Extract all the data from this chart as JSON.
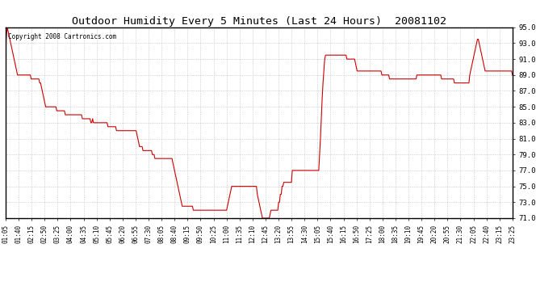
{
  "title": "Outdoor Humidity Every 5 Minutes (Last 24 Hours)  20081102",
  "copyright": "Copyright 2008 Cartronics.com",
  "line_color": "#cc0000",
  "bg_color": "#ffffff",
  "grid_color": "#aaaaaa",
  "ylim": [
    71.0,
    95.0
  ],
  "yticks": [
    71.0,
    73.0,
    75.0,
    77.0,
    79.0,
    81.0,
    83.0,
    85.0,
    87.0,
    89.0,
    91.0,
    93.0,
    95.0
  ],
  "xtick_labels": [
    "01:05",
    "01:40",
    "02:15",
    "02:50",
    "03:25",
    "04:00",
    "04:35",
    "05:10",
    "05:45",
    "06:20",
    "06:55",
    "07:30",
    "08:05",
    "08:40",
    "09:15",
    "09:50",
    "10:25",
    "11:00",
    "11:35",
    "12:10",
    "12:45",
    "13:20",
    "13:55",
    "14:30",
    "15:05",
    "15:40",
    "16:15",
    "16:50",
    "17:25",
    "18:00",
    "18:35",
    "19:10",
    "19:45",
    "20:20",
    "20:55",
    "21:30",
    "22:05",
    "22:40",
    "23:15",
    "23:25"
  ],
  "humidity_values": [
    92,
    94,
    95,
    94.5,
    94,
    93.5,
    93,
    92.5,
    92,
    91.5,
    91,
    90.5,
    90,
    89.5,
    89,
    89,
    89,
    89,
    89,
    89,
    89,
    89,
    89,
    89,
    89,
    89,
    89,
    89,
    89,
    89,
    88.5,
    88.5,
    88.5,
    88.5,
    88.5,
    88.5,
    88.5,
    88.5,
    88.5,
    88.5,
    88,
    88,
    87.5,
    87,
    86.5,
    86,
    85.5,
    85,
    85,
    85,
    85,
    85,
    85,
    85,
    85,
    85,
    85,
    85,
    85,
    85,
    84.5,
    84.5,
    84.5,
    84.5,
    84.5,
    84.5,
    84.5,
    84.5,
    84.5,
    84.5,
    84,
    84,
    84,
    84,
    84,
    84,
    84,
    84,
    84,
    84,
    84,
    84,
    84,
    84,
    84,
    84,
    84,
    84,
    84,
    84,
    83.5,
    83.5,
    83.5,
    83.5,
    83.5,
    83.5,
    83.5,
    83.5,
    83.5,
    83.5,
    83,
    83,
    83.5,
    83,
    83,
    83,
    83,
    83,
    83,
    83,
    83,
    83,
    83,
    83,
    83,
    83,
    83,
    83,
    83,
    83,
    82.5,
    82.5,
    82.5,
    82.5,
    82.5,
    82.5,
    82.5,
    82.5,
    82.5,
    82.5,
    82,
    82,
    82,
    82,
    82,
    82,
    82,
    82,
    82,
    82,
    82,
    82,
    82,
    82,
    82,
    82,
    82,
    82,
    82,
    82,
    82,
    82,
    82,
    82,
    81.5,
    81,
    80.5,
    80,
    80,
    80,
    80,
    79.5,
    79.5,
    79.5,
    79.5,
    79.5,
    79.5,
    79.5,
    79.5,
    79.5,
    79.5,
    79.5,
    79,
    79,
    79,
    78.5,
    78.5,
    78.5,
    78.5,
    78.5,
    78.5,
    78.5,
    78.5,
    78.5,
    78.5,
    78.5,
    78.5,
    78.5,
    78.5,
    78.5,
    78.5,
    78.5,
    78.5,
    78.5,
    78.5,
    78.5,
    78,
    77.5,
    77,
    76.5,
    76,
    75.5,
    75,
    74.5,
    74,
    73.5,
    73,
    72.5,
    72.5,
    72.5,
    72.5,
    72.5,
    72.5,
    72.5,
    72.5,
    72.5,
    72.5,
    72.5,
    72.5,
    72.5,
    72,
    72,
    72,
    72,
    72,
    72,
    72,
    72,
    72,
    72,
    72,
    72,
    72,
    72,
    72,
    72,
    72,
    72,
    72,
    72,
    72,
    72,
    72,
    72,
    72,
    72,
    72,
    72,
    72,
    72,
    72,
    72,
    72,
    72,
    72,
    72,
    72,
    72,
    72,
    72,
    72.5,
    73,
    73.5,
    74,
    74.5,
    75,
    75,
    75,
    75,
    75,
    75,
    75,
    75,
    75,
    75,
    75,
    75,
    75,
    75,
    75,
    75,
    75,
    75,
    75,
    75,
    75,
    75,
    75,
    75,
    75,
    75,
    75,
    75,
    75,
    75,
    74,
    73.5,
    73,
    72.5,
    72,
    71.5,
    71,
    71,
    71,
    71,
    71,
    71,
    71,
    71,
    71,
    71.5,
    72,
    72,
    72,
    72,
    72,
    72,
    72,
    72,
    72,
    73,
    73,
    74,
    74,
    75,
    75,
    75.5,
    75.5,
    75.5,
    75.5,
    75.5,
    75.5,
    75.5,
    75.5,
    75.5,
    75.5,
    77,
    77,
    77,
    77,
    77,
    77,
    77,
    77,
    77,
    77,
    77,
    77,
    77,
    77,
    77,
    77,
    77,
    77,
    77,
    77,
    77,
    77,
    77,
    77,
    77,
    77,
    77,
    77,
    77,
    77,
    77,
    77,
    79,
    81,
    83.5,
    86,
    88,
    89.5,
    91,
    91.5,
    91.5,
    91.5,
    91.5,
    91.5,
    91.5,
    91.5,
    91.5,
    91.5,
    91.5,
    91.5,
    91.5,
    91.5,
    91.5,
    91.5,
    91.5,
    91.5,
    91.5,
    91.5,
    91.5,
    91.5,
    91.5,
    91.5,
    91.5,
    91.5,
    91,
    91,
    91,
    91,
    91,
    91,
    91,
    91,
    91,
    91,
    90.5,
    90,
    89.5,
    89.5,
    89.5,
    89.5,
    89.5,
    89.5,
    89.5,
    89.5,
    89.5,
    89.5,
    89.5,
    89.5,
    89.5,
    89.5,
    89.5,
    89.5,
    89.5,
    89.5,
    89.5,
    89.5,
    89.5,
    89.5,
    89.5,
    89.5,
    89.5,
    89.5,
    89.5,
    89.5,
    89.5,
    89,
    89,
    89,
    89,
    89,
    89,
    89,
    89,
    89,
    88.5,
    88.5,
    88.5,
    88.5,
    88.5,
    88.5,
    88.5,
    88.5,
    88.5,
    88.5,
    88.5,
    88.5,
    88.5,
    88.5,
    88.5,
    88.5,
    88.5,
    88.5,
    88.5,
    88.5,
    88.5,
    88.5,
    88.5,
    88.5,
    88.5,
    88.5,
    88.5,
    88.5,
    88.5,
    88.5,
    88.5,
    88.5,
    89,
    89,
    89,
    89,
    89,
    89,
    89,
    89,
    89,
    89,
    89,
    89,
    89,
    89,
    89,
    89,
    89,
    89,
    89,
    89,
    89,
    89,
    89,
    89,
    89,
    89,
    89,
    89,
    89,
    88.5,
    88.5,
    88.5,
    88.5,
    88.5,
    88.5,
    88.5,
    88.5,
    88.5,
    88.5,
    88.5,
    88.5,
    88.5,
    88.5,
    88.5,
    88,
    88,
    88,
    88,
    88,
    88,
    88,
    88,
    88,
    88,
    88,
    88,
    88,
    88,
    88,
    88,
    88,
    88,
    89,
    89.5,
    90,
    90.5,
    91,
    91.5,
    92,
    92.5,
    93,
    93.5,
    93.5,
    93,
    92.5,
    92,
    91.5,
    91,
    90.5,
    90,
    89.5,
    89.5,
    89.5,
    89.5,
    89.5,
    89.5,
    89.5,
    89.5,
    89.5,
    89.5,
    89.5,
    89.5,
    89.5,
    89.5,
    89.5,
    89.5,
    89.5,
    89.5,
    89.5,
    89.5,
    89.5,
    89.5,
    89.5,
    89.5,
    89.5,
    89.5,
    89.5,
    89.5,
    89.5,
    89.5,
    89.5,
    89.5,
    89
  ]
}
